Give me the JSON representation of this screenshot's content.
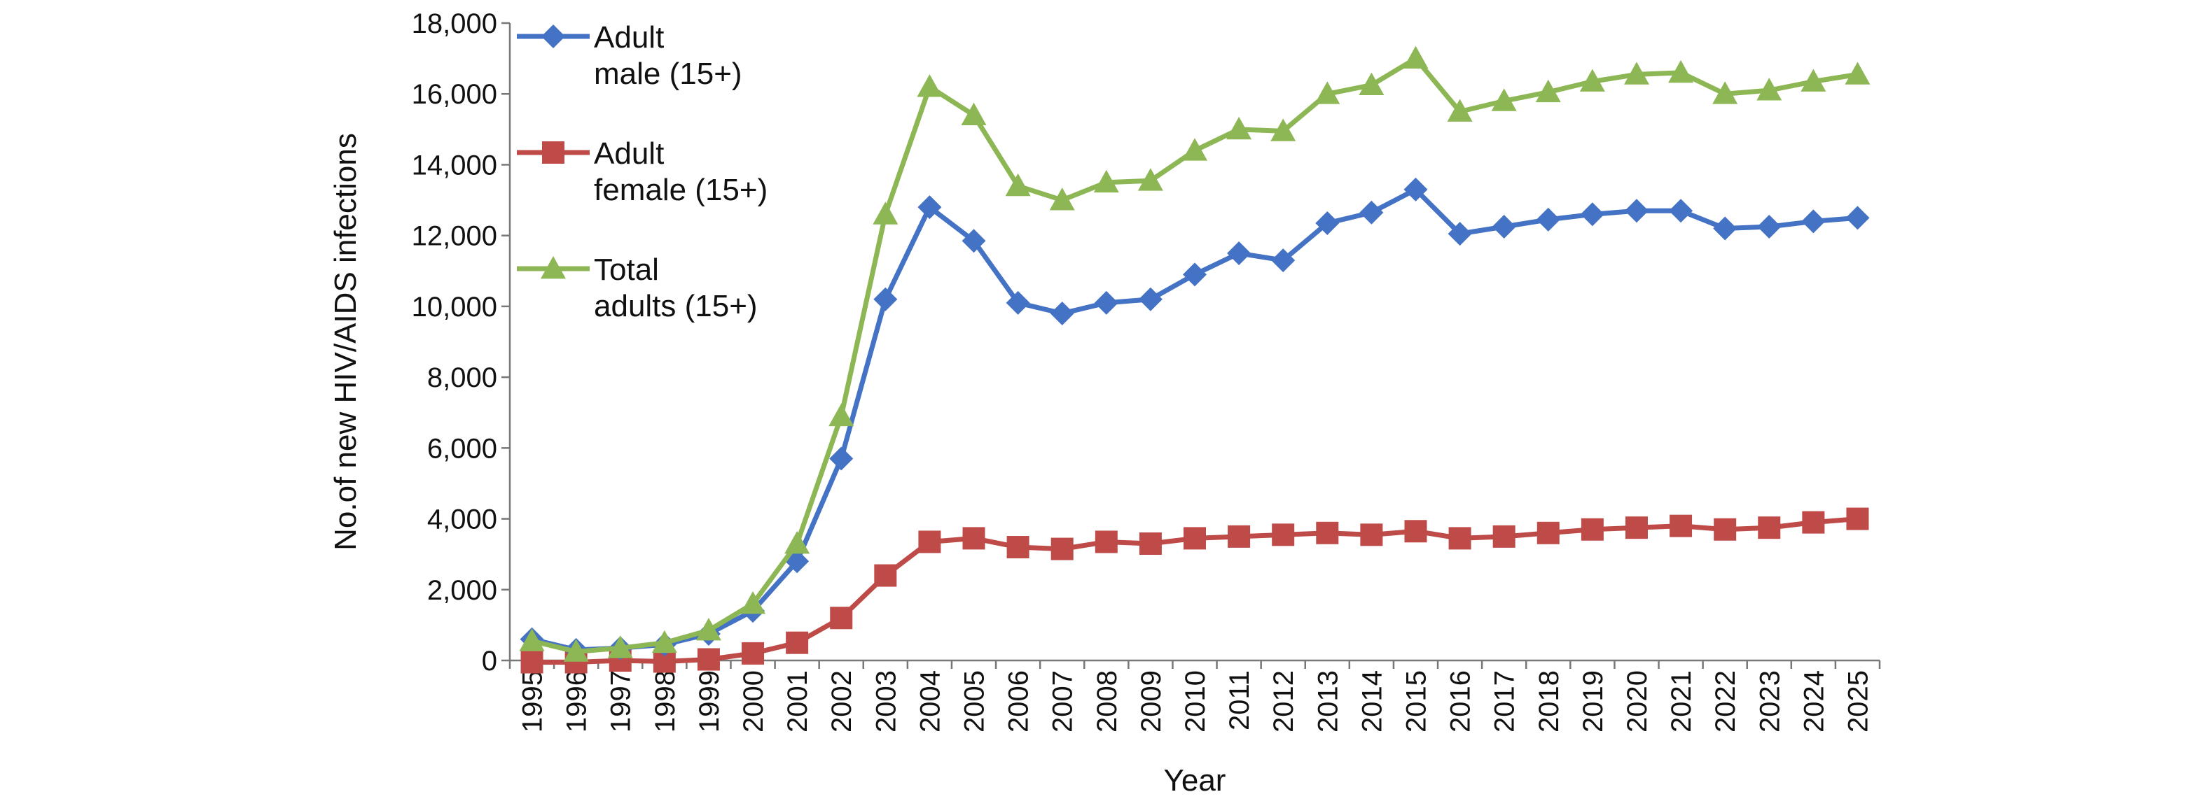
{
  "chart_data": {
    "type": "line",
    "xlabel": "Year",
    "ylabel": "No.of new HIV/AIDS infections",
    "ylim": [
      0,
      18000
    ],
    "yticks": [
      0,
      2000,
      4000,
      6000,
      8000,
      10000,
      12000,
      14000,
      16000,
      18000
    ],
    "ytick_labels": [
      "0",
      "2,000",
      "4,000",
      "6,000",
      "8,000",
      "10,000",
      "12,000",
      "14,000",
      "16,000",
      "18,000"
    ],
    "grid": false,
    "legend_position": "top-left",
    "x": [
      "1995",
      "1996",
      "1997",
      "1998",
      "1999",
      "2000",
      "2001",
      "2002",
      "2003",
      "2004",
      "2005",
      "2006",
      "2007",
      "2008",
      "2009",
      "2010",
      "2011",
      "2012",
      "2013",
      "2014",
      "2015",
      "2016",
      "2017",
      "2018",
      "2019",
      "2020",
      "2021",
      "2022",
      "2023",
      "2024",
      "2025"
    ],
    "series": [
      {
        "name": "Adult male (15+)",
        "legend_lines": [
          "Adult",
          "male (15+)"
        ],
        "color": "#4472C4",
        "marker": "diamond",
        "values": [
          600,
          300,
          350,
          450,
          750,
          1400,
          2800,
          5700,
          10200,
          12800,
          11850,
          10100,
          9800,
          10100,
          10200,
          10900,
          11500,
          11300,
          12350,
          12650,
          13300,
          12050,
          12250,
          12450,
          12600,
          12700,
          12700,
          12200,
          12250,
          12400,
          12500
        ]
      },
      {
        "name": "Adult female (15+)",
        "legend_lines": [
          "Adult",
          "female (15+)"
        ],
        "color": "#BE4B48",
        "marker": "square",
        "values": [
          -50,
          -50,
          0,
          -30,
          30,
          200,
          500,
          1200,
          2400,
          3350,
          3450,
          3200,
          3150,
          3350,
          3300,
          3450,
          3500,
          3550,
          3600,
          3550,
          3650,
          3450,
          3500,
          3600,
          3700,
          3750,
          3800,
          3700,
          3750,
          3900,
          4000
        ]
      },
      {
        "name": "Total adults (15+)",
        "legend_lines": [
          "Total",
          "adults (15+)"
        ],
        "color": "#8DB654",
        "marker": "triangle",
        "values": [
          550,
          250,
          350,
          500,
          850,
          1600,
          3300,
          6900,
          12600,
          16200,
          15400,
          13400,
          13000,
          13500,
          13550,
          14400,
          15000,
          14950,
          16000,
          16250,
          17000,
          15500,
          15800,
          16050,
          16350,
          16550,
          16600,
          16000,
          16100,
          16350,
          16550
        ]
      }
    ]
  }
}
